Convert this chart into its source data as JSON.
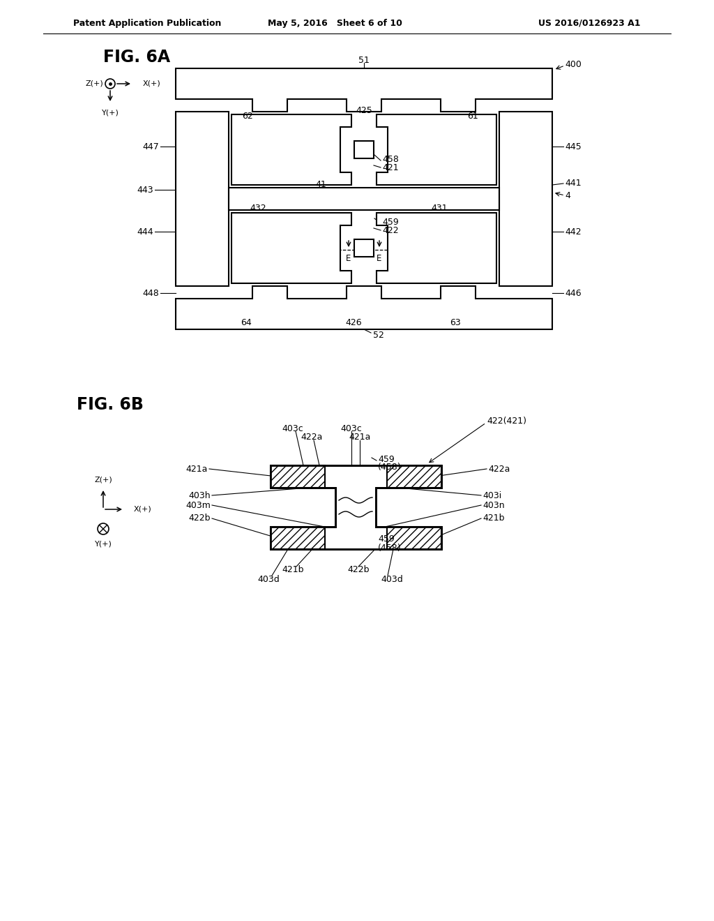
{
  "header_left": "Patent Application Publication",
  "header_mid": "May 5, 2016   Sheet 6 of 10",
  "header_right": "US 2016/0126923 A1",
  "fig6a_label": "FIG. 6A",
  "fig6b_label": "FIG. 6B",
  "bg_color": "#ffffff",
  "line_color": "#000000"
}
